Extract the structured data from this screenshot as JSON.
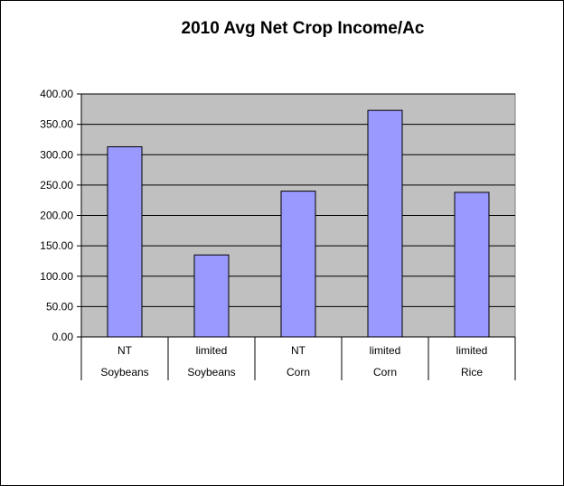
{
  "chart_data": {
    "type": "bar",
    "title": "2010 Avg Net Crop Income/Ac",
    "categories": [
      [
        "NT",
        "Soybeans"
      ],
      [
        "limited",
        "Soybeans"
      ],
      [
        "NT",
        "Corn"
      ],
      [
        "limited",
        "Corn"
      ],
      [
        "limited",
        "Rice"
      ]
    ],
    "values": [
      313,
      135,
      240,
      373,
      238
    ],
    "ylim": [
      0,
      400
    ],
    "yticks": [
      "0.00",
      "50.00",
      "100.00",
      "150.00",
      "200.00",
      "250.00",
      "300.00",
      "350.00",
      "400.00"
    ],
    "grid": true,
    "legend": "none",
    "colors": {
      "plot_background": "#c0c0c0",
      "bar_fill": "#9999ff",
      "bar_stroke": "#000000",
      "gridline": "#000000"
    }
  }
}
